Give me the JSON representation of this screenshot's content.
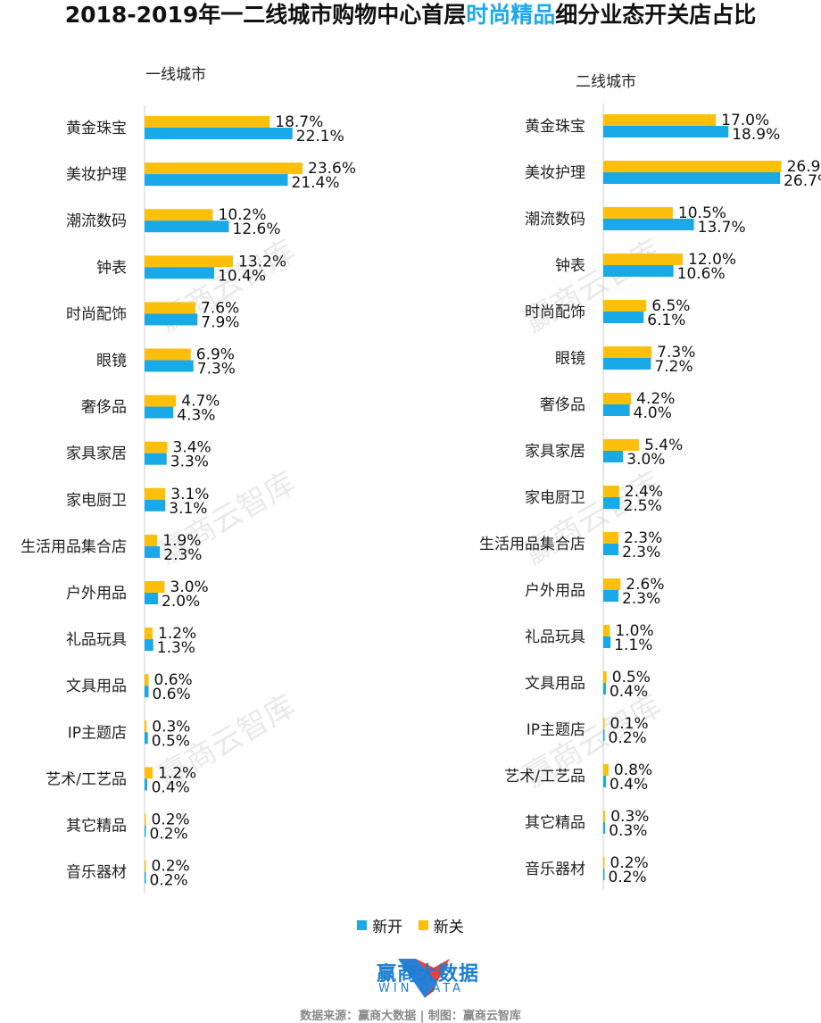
{
  "title": {
    "prefix": "2018-2019年一二线城市购物中心首层",
    "highlight": "时尚精品",
    "suffix": "细分业态开关店占比"
  },
  "colors": {
    "new_open": "#18a9e6",
    "new_close": "#fbbf0c",
    "highlight": "#1fa9e8",
    "axis": "#cfcfcf"
  },
  "legend": {
    "new_open": "新开",
    "new_close": "新关"
  },
  "watermark": "赢商云智库",
  "logo": {
    "name": "赢商大数据",
    "sub": "WIN DATA"
  },
  "source": "数据来源：赢商大数据 | 制图：赢商云智库",
  "chart_data": [
    {
      "type": "bar",
      "title": "一线城市",
      "categories": [
        "黄金珠宝",
        "美妆护理",
        "潮流数码",
        "钟表",
        "时尚配饰",
        "眼镜",
        "奢侈品",
        "家具家居",
        "家电厨卫",
        "生活用品集合店",
        "户外用品",
        "礼品玩具",
        "文具用品",
        "IP主题店",
        "艺术/工艺品",
        "其它精品",
        "音乐器材"
      ],
      "series": [
        {
          "name": "新关",
          "values": [
            18.7,
            23.6,
            10.2,
            13.2,
            7.6,
            6.9,
            4.7,
            3.4,
            3.1,
            1.9,
            3.0,
            1.2,
            0.6,
            0.3,
            1.2,
            0.2,
            0.2
          ]
        },
        {
          "name": "新开",
          "values": [
            22.1,
            21.4,
            12.6,
            10.4,
            7.9,
            7.3,
            4.3,
            3.3,
            3.1,
            2.3,
            2.0,
            1.3,
            0.6,
            0.5,
            0.4,
            0.2,
            0.2
          ]
        }
      ],
      "value_format": "%"
    },
    {
      "type": "bar",
      "title": "二线城市",
      "categories": [
        "黄金珠宝",
        "美妆护理",
        "潮流数码",
        "钟表",
        "时尚配饰",
        "眼镜",
        "奢侈品",
        "家具家居",
        "家电厨卫",
        "生活用品集合店",
        "户外用品",
        "礼品玩具",
        "文具用品",
        "IP主题店",
        "艺术/工艺品",
        "其它精品",
        "音乐器材"
      ],
      "series": [
        {
          "name": "新关",
          "values": [
            17.0,
            26.9,
            10.5,
            12.0,
            6.5,
            7.3,
            4.2,
            5.4,
            2.4,
            2.3,
            2.6,
            1.0,
            0.5,
            0.1,
            0.8,
            0.3,
            0.2
          ]
        },
        {
          "name": "新开",
          "values": [
            18.9,
            26.7,
            13.7,
            10.6,
            6.1,
            7.2,
            4.0,
            3.0,
            2.5,
            2.3,
            2.3,
            1.1,
            0.4,
            0.2,
            0.4,
            0.3,
            0.2
          ]
        }
      ],
      "value_format": "%"
    }
  ]
}
